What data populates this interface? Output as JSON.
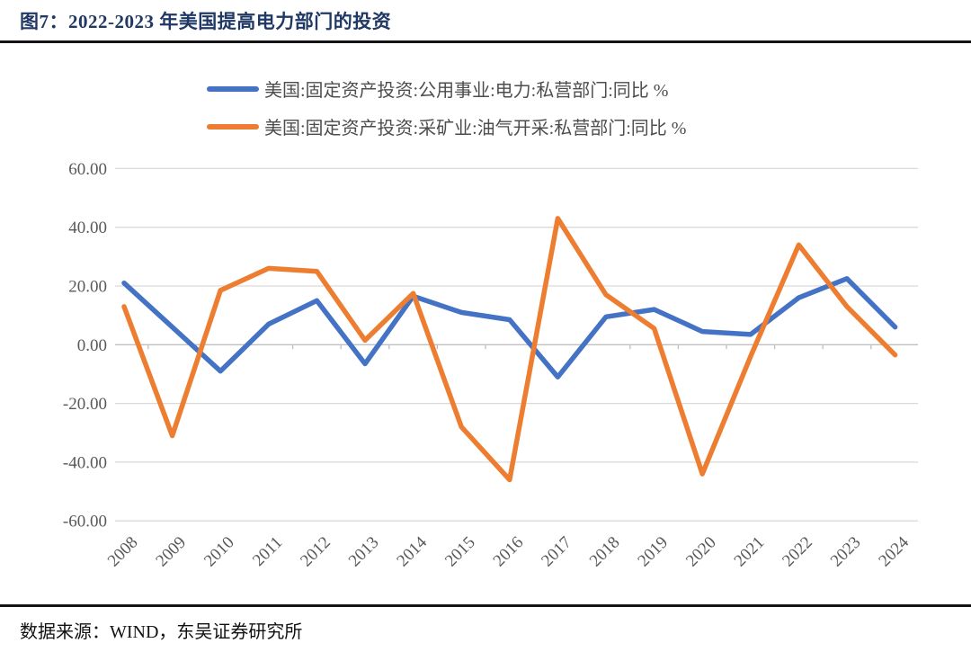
{
  "figure": {
    "title": "图7：2022-2023 年美国提高电力部门的投资",
    "source_note": "数据来源：WIND，东吴证券研究所"
  },
  "chart_data": {
    "type": "line",
    "title": "图7：2022-2023 年美国提高电力部门的投资",
    "xlabel": "",
    "ylabel": "同比 %",
    "categories": [
      "2008",
      "2009",
      "2010",
      "2011",
      "2012",
      "2013",
      "2014",
      "2015",
      "2016",
      "2017",
      "2018",
      "2019",
      "2020",
      "2021",
      "2022",
      "2023",
      "2024"
    ],
    "series": [
      {
        "name": "美国:固定资产投资:公用事业:电力:私营部门:同比 %",
        "color": "#4472C4",
        "values": [
          21,
          6,
          -9,
          7,
          15,
          -6.5,
          16.5,
          11,
          8.5,
          -11,
          9.5,
          12,
          4.5,
          3.5,
          16,
          22.5,
          6
        ]
      },
      {
        "name": "美国:固定资产投资:采矿业:油气开采:私营部门:同比 %",
        "color": "#ED7D31",
        "values": [
          13,
          -31,
          18.5,
          26,
          25,
          1.5,
          17.5,
          -28,
          -46,
          43,
          17,
          5.5,
          -44,
          -4,
          34,
          13,
          -3.5
        ]
      }
    ],
    "ylim": [
      -60,
      60
    ],
    "ytick_step": 20,
    "ytick_labels": [
      "60.00",
      "40.00",
      "20.00",
      "0.00",
      "-20.00",
      "-40.00",
      "-60.00"
    ],
    "grid": true,
    "legend_position": "top-left",
    "x_tick_rotation_deg": -45
  },
  "colors": {
    "title_text": "#1f3864",
    "rule": "#141414",
    "gridline": "#d9d9d9",
    "axis_line": "#bfbfbf",
    "axis_text": "#595959",
    "legend_text": "#4d4d4d",
    "series_power": "#4472C4",
    "series_oilgas": "#ED7D31"
  }
}
